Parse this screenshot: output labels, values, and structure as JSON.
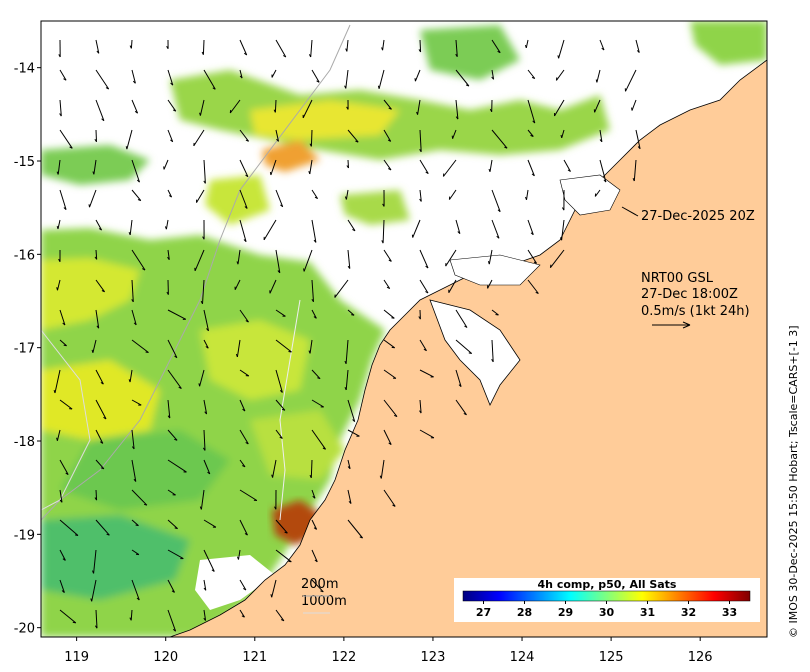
{
  "map": {
    "timestamp_label": "27-Dec-2025 20Z",
    "current_label_lines": [
      "NRT00 GSL",
      "27-Dec 18:00Z",
      "0.5m/s (1kt 24h)"
    ],
    "contour_labels": [
      "200m",
      "1000m"
    ],
    "credit": "© IMOS 30-Dec-2025 15:50 Hobart; Tscale=CARS+[-1 3]",
    "x_ticks": [
      "119",
      "120",
      "121",
      "122",
      "123",
      "124",
      "125",
      "126"
    ],
    "y_ticks": [
      "-14",
      "-15",
      "-16",
      "-17",
      "-18",
      "-19",
      "-20"
    ],
    "x_range": [
      118.6,
      126.75
    ],
    "y_range": [
      -20.1,
      -13.5
    ],
    "land_color": "#ffcc99",
    "colors": {
      "ocean_main": "#8fd44a",
      "warm_patch": "#f0e020",
      "hot_patch": "#b34a10",
      "cloud": "#ffffff"
    }
  },
  "colorbar": {
    "title": "4h comp, p50, All Sats",
    "ticks": [
      "27",
      "28",
      "29",
      "30",
      "31",
      "32",
      "33"
    ],
    "range": [
      26.5,
      33.5
    ],
    "colors": [
      "#00007f",
      "#0000ff",
      "#007fff",
      "#00ffff",
      "#7fff7f",
      "#ffff00",
      "#ff7f00",
      "#ff0000",
      "#7f0000"
    ]
  }
}
